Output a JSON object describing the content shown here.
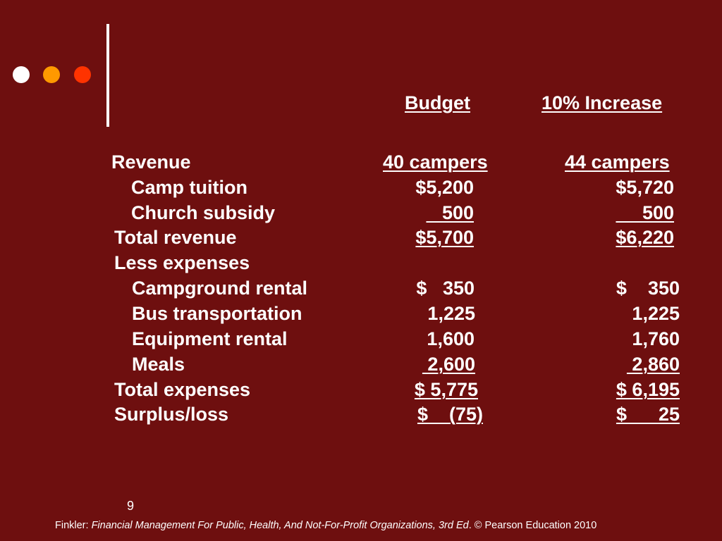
{
  "decoration": {
    "dot_colors": [
      "#ffffff",
      "#ff9900",
      "#ff3300"
    ],
    "background": "#6e0f0f"
  },
  "table": {
    "col1_header": "Budget",
    "col2_header": "10% Increase",
    "revenue_label": "Revenue",
    "col1_sub": "40 campers",
    "col2_sub": "44 campers",
    "rows": [
      {
        "label": "Camp tuition",
        "v1": "$5,200",
        "v2": "$5,720"
      },
      {
        "label": "Church subsidy",
        "v1": "   500",
        "v2": "     500"
      },
      {
        "label": "Total revenue",
        "v1": "$5,700",
        "v2": "$6,220"
      },
      {
        "label": "Less expenses",
        "v1": "",
        "v2": ""
      },
      {
        "label": "Campground rental",
        "v1": "$   350",
        "v2": "$    350"
      },
      {
        "label": "Bus transportation",
        "v1": "1,225",
        "v2": "1,225"
      },
      {
        "label": "Equipment rental",
        "v1": "1,600",
        "v2": "1,760"
      },
      {
        "label": "Meals",
        "v1": " 2,600",
        "v2": " 2,860"
      },
      {
        "label": "Total expenses",
        "v1": "$ 5,775",
        "v2": "$ 6,195"
      },
      {
        "label": "Surplus/loss",
        "v1": "$    (75)",
        "v2": "$      25"
      }
    ]
  },
  "slide_number": "9",
  "footer": {
    "prefix": "Finkler: ",
    "title": "Financial Management For Public, Health, And Not-For-Profit Organizations, 3rd Ed",
    "suffix": ". © Pearson Education 2010"
  }
}
